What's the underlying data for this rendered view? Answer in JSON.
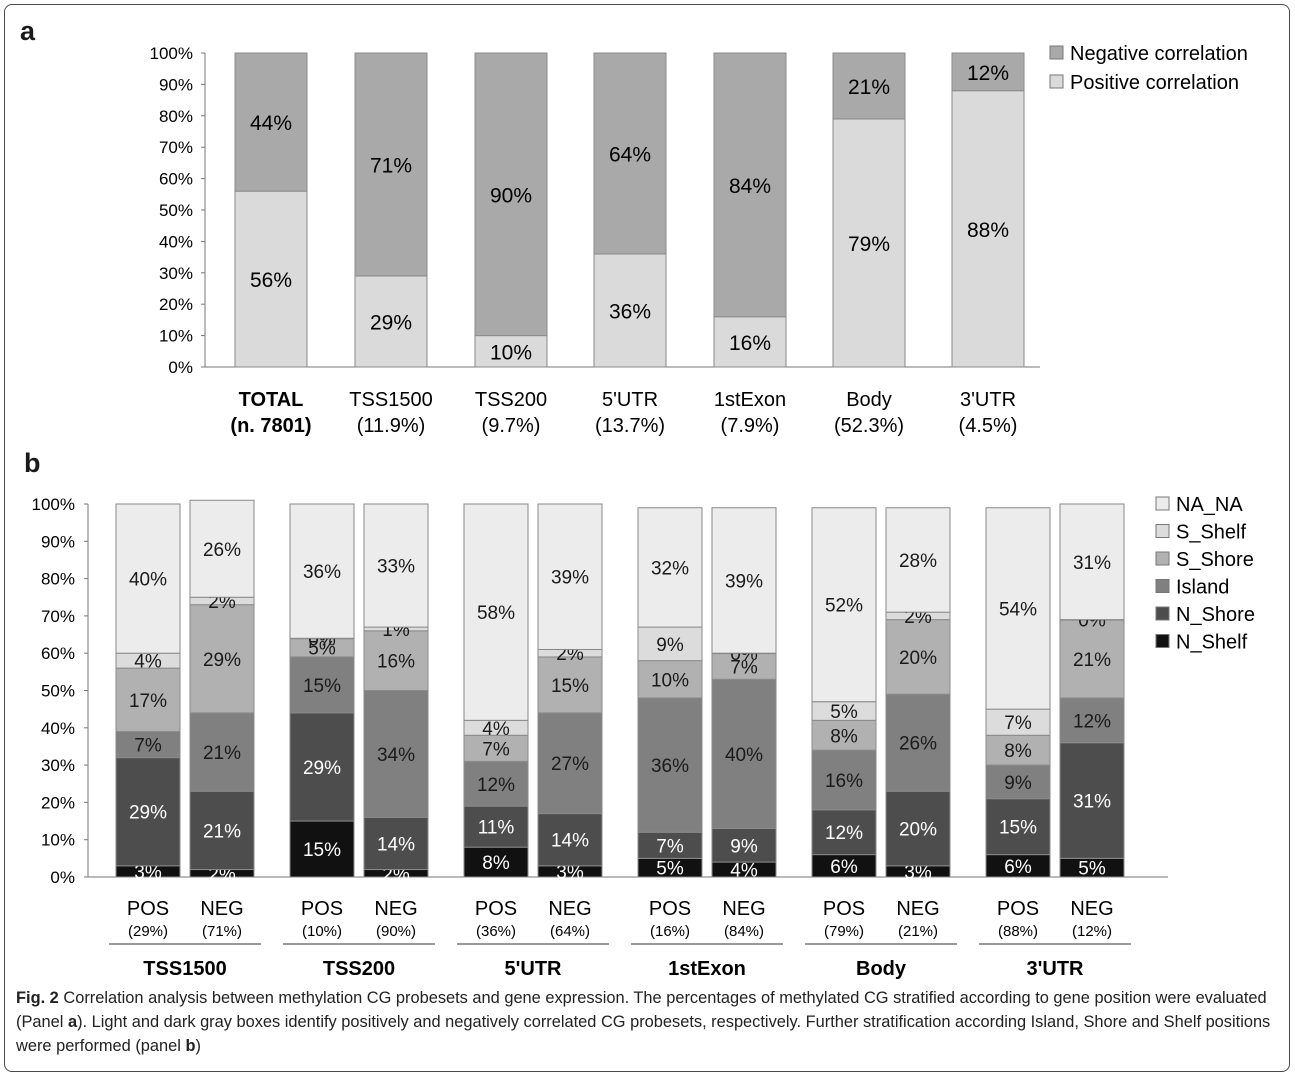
{
  "panel_a_letter": "a",
  "panel_b_letter": "b",
  "caption": {
    "label": "Fig. 2",
    "text_1": " Correlation analysis between methylation CG probesets and gene expression. The percentages of methylated CG stratified according to gene position were evaluated (Panel ",
    "panel_a_ref": "a",
    "text_2": "). Light and dark gray boxes identify positively and negatively correlated CG probesets, respectively. Further stratification according Island, Shore and Shelf positions were performed (panel ",
    "panel_b_ref": "b",
    "text_3": ")"
  },
  "colors": {
    "positive": "#dadada",
    "negative": "#a9a9a9",
    "NA_NA": "#ececec",
    "S_Shelf": "#dcdcdc",
    "S_Shore": "#b1b1b1",
    "Island": "#808080",
    "N_Shore": "#4d4d4d",
    "N_Shelf": "#111111"
  },
  "chart_data": [
    {
      "type": "bar",
      "stacked": true,
      "ylim": [
        0,
        100
      ],
      "yticks": [
        "0%",
        "10%",
        "20%",
        "30%",
        "40%",
        "50%",
        "60%",
        "70%",
        "80%",
        "90%",
        "100%"
      ],
      "categories": [
        {
          "line1": "TOTAL",
          "line2": "(n. 7801)",
          "bold": true
        },
        {
          "line1": "TSS1500",
          "line2": "(11.9%)"
        },
        {
          "line1": "TSS200",
          "line2": "(9.7%)"
        },
        {
          "line1": "5'UTR",
          "line2": "(13.7%)"
        },
        {
          "line1": "1stExon",
          "line2": "(7.9%)"
        },
        {
          "line1": "Body",
          "line2": "(52.3%)"
        },
        {
          "line1": "3'UTR",
          "line2": "(4.5%)"
        }
      ],
      "series": [
        {
          "name": "Positive correlation",
          "values": [
            56,
            29,
            10,
            36,
            16,
            79,
            88
          ],
          "labels": [
            "56%",
            "29%",
            "10%",
            "36%",
            "16%",
            "79%",
            "88%"
          ]
        },
        {
          "name": "Negative correlation",
          "values": [
            44,
            71,
            90,
            64,
            84,
            21,
            12
          ],
          "labels": [
            "44%",
            "71%",
            "90%",
            "64%",
            "84%",
            "21%",
            "12%"
          ]
        }
      ],
      "legend": [
        "Negative correlation",
        "Positive correlation"
      ],
      "legend_position": "top-right"
    },
    {
      "type": "bar",
      "stacked": true,
      "ylim": [
        0,
        100
      ],
      "yticks": [
        "0%",
        "10%",
        "20%",
        "30%",
        "40%",
        "50%",
        "60%",
        "70%",
        "80%",
        "90%",
        "100%"
      ],
      "groups": [
        {
          "name": "TSS1500",
          "bars": [
            {
              "label": "POS",
              "sub": "(29%)",
              "values": [
                3,
                29,
                7,
                17,
                4,
                40
              ],
              "labels": [
                "3%",
                "29%",
                "7%",
                "17%",
                "4%",
                "40%"
              ]
            },
            {
              "label": "NEG",
              "sub": "(71%)",
              "values": [
                2,
                21,
                21,
                29,
                2,
                26
              ],
              "labels": [
                "2%",
                "21%",
                "21%",
                "29%",
                "2%",
                "26%"
              ]
            }
          ]
        },
        {
          "name": "TSS200",
          "bars": [
            {
              "label": "POS",
              "sub": "(10%)",
              "values": [
                15,
                29,
                15,
                5,
                0,
                36
              ],
              "labels": [
                "15%",
                "29%",
                "15%",
                "5%",
                "0%",
                "36%"
              ]
            },
            {
              "label": "NEG",
              "sub": "(90%)",
              "values": [
                2,
                14,
                34,
                16,
                1,
                33
              ],
              "labels": [
                "2%",
                "14%",
                "34%",
                "16%",
                "1%",
                "33%"
              ]
            }
          ]
        },
        {
          "name": "5'UTR",
          "bars": [
            {
              "label": "POS",
              "sub": "(36%)",
              "values": [
                8,
                11,
                12,
                7,
                4,
                58
              ],
              "labels": [
                "8%",
                "11%",
                "12%",
                "7%",
                "4%",
                "58%"
              ]
            },
            {
              "label": "NEG",
              "sub": "(64%)",
              "values": [
                3,
                14,
                27,
                15,
                2,
                39
              ],
              "labels": [
                "3%",
                "14%",
                "27%",
                "15%",
                "2%",
                "39%"
              ]
            }
          ]
        },
        {
          "name": "1stExon",
          "bars": [
            {
              "label": "POS",
              "sub": "(16%)",
              "values": [
                5,
                7,
                36,
                10,
                9,
                32
              ],
              "labels": [
                "5%",
                "7%",
                "36%",
                "10%",
                "9%",
                "32%"
              ]
            },
            {
              "label": "NEG",
              "sub": "(84%)",
              "values": [
                4,
                9,
                40,
                7,
                0,
                39
              ],
              "labels": [
                "4%",
                "9%",
                "40%",
                "7%",
                "0%",
                "39%"
              ]
            }
          ]
        },
        {
          "name": "Body",
          "bars": [
            {
              "label": "POS",
              "sub": "(79%)",
              "values": [
                6,
                12,
                16,
                8,
                5,
                52
              ],
              "labels": [
                "6%",
                "12%",
                "16%",
                "8%",
                "5%",
                "52%"
              ]
            },
            {
              "label": "NEG",
              "sub": "(21%)",
              "values": [
                3,
                20,
                26,
                20,
                2,
                28
              ],
              "labels": [
                "3%",
                "20%",
                "26%",
                "20%",
                "2%",
                "28%"
              ]
            }
          ]
        },
        {
          "name": "3'UTR",
          "bars": [
            {
              "label": "POS",
              "sub": "(88%)",
              "values": [
                6,
                15,
                9,
                8,
                7,
                54
              ],
              "labels": [
                "6%",
                "15%",
                "9%",
                "8%",
                "7%",
                "54%"
              ]
            },
            {
              "label": "NEG",
              "sub": "(12%)",
              "values": [
                5,
                31,
                12,
                21,
                0,
                31
              ],
              "labels": [
                "5%",
                "31%",
                "12%",
                "21%",
                "0%",
                "31%"
              ]
            }
          ]
        }
      ],
      "series_order_bottom_to_top": [
        "N_Shelf",
        "N_Shore",
        "Island",
        "S_Shore",
        "S_Shelf",
        "NA_NA"
      ],
      "legend": [
        "NA_NA",
        "S_Shelf",
        "S_Shore",
        "Island",
        "N_Shore",
        "N_Shelf"
      ],
      "legend_position": "top-right"
    }
  ]
}
